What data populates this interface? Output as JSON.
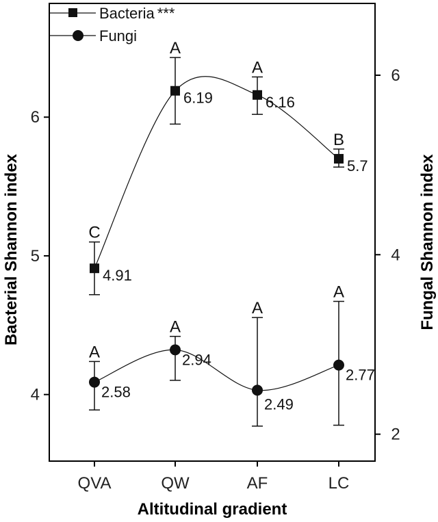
{
  "chart_data": {
    "type": "line",
    "xlabel": "Altitudinal gradient",
    "ylabel": "Bacterial Shannon index",
    "y2label": "Fungal Shannon index",
    "categories": [
      "QVA",
      "QW",
      "AF",
      "LC"
    ],
    "ylim": [
      3.52,
      6.82
    ],
    "y2lim": [
      1.7,
      6.8
    ],
    "yticks": [
      4,
      5,
      6
    ],
    "y2ticks": [
      2,
      4,
      6
    ],
    "series": [
      {
        "name": "Bacteria",
        "axis": "left",
        "marker": "square",
        "values": [
          4.91,
          6.19,
          6.16,
          5.7
        ],
        "err_low": [
          4.72,
          5.95,
          6.02,
          5.64
        ],
        "err_high": [
          5.1,
          6.43,
          6.29,
          5.77
        ],
        "labels": [
          "4.91",
          "6.19",
          "6.16",
          "5.7"
        ],
        "significance": [
          "C",
          "A",
          "A",
          "B"
        ]
      },
      {
        "name": "Fungi",
        "axis": "right",
        "marker": "circle",
        "values": [
          2.58,
          2.94,
          2.49,
          2.77
        ],
        "err_low": [
          2.27,
          2.6,
          2.09,
          2.1
        ],
        "err_high": [
          2.81,
          3.09,
          3.3,
          3.48
        ],
        "labels": [
          "2.58",
          "2.94",
          "2.49",
          "2.77"
        ],
        "significance": [
          "A",
          "A",
          "A",
          "A"
        ]
      }
    ],
    "legend": {
      "position": "top-left",
      "entries": [
        {
          "label": "Bacteria",
          "suffix": "***"
        },
        {
          "label": "Fungi",
          "suffix": ""
        }
      ]
    }
  }
}
